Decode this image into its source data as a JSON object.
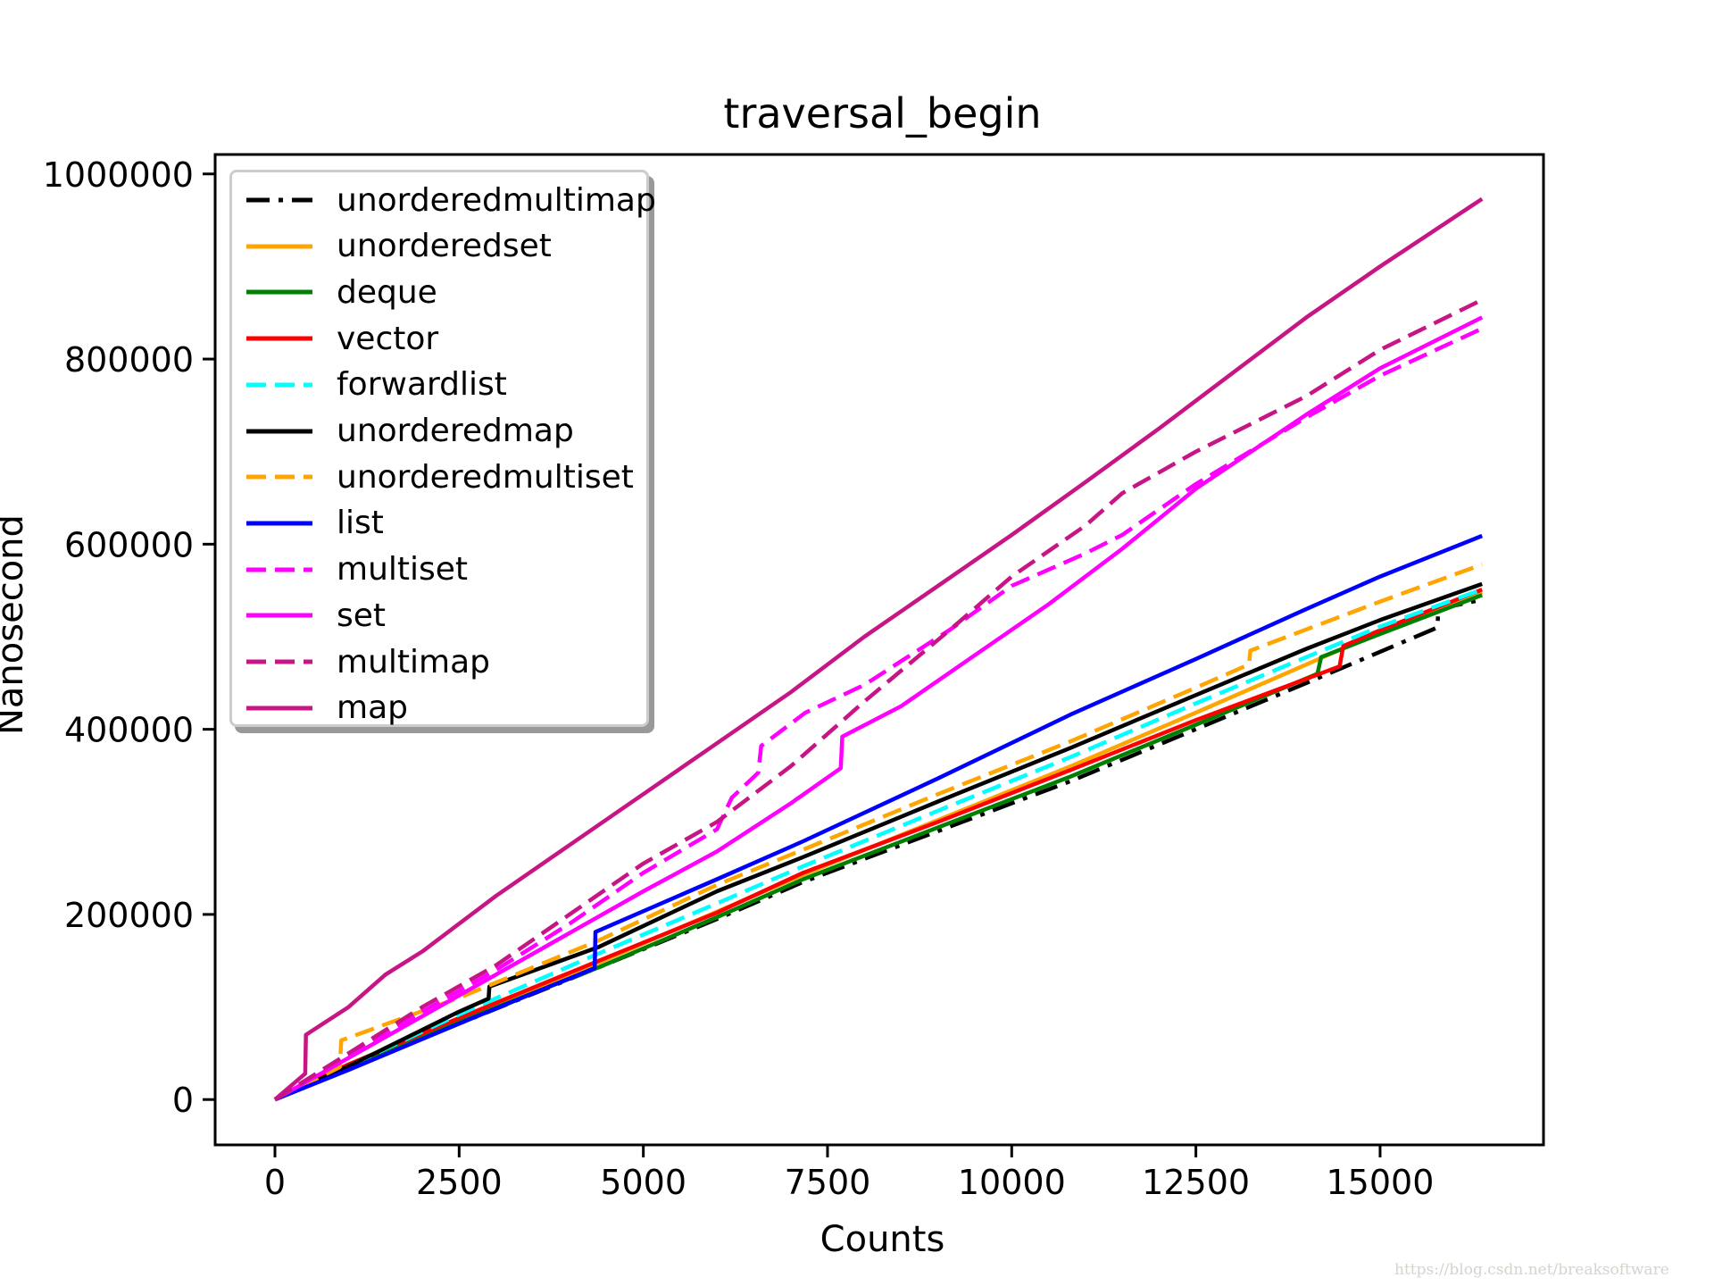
{
  "chart_data": {
    "type": "line",
    "title": "traversal_begin",
    "xlabel": "Counts",
    "ylabel": "Nanosecond",
    "xlim": [
      -812,
      17218
    ],
    "ylim": [
      -49000,
      1021000
    ],
    "xticks": [
      0,
      2500,
      5000,
      7500,
      10000,
      12500,
      15000
    ],
    "xtick_labels": [
      "0",
      "2500",
      "5000",
      "7500",
      "10000",
      "12500",
      "15000"
    ],
    "yticks": [
      0,
      200000,
      400000,
      600000,
      800000,
      1000000
    ],
    "ytick_labels": [
      "0",
      "200000",
      "400000",
      "600000",
      "800000",
      "1000000"
    ],
    "grid": false,
    "legend_position": "upper left",
    "series": [
      {
        "name": "unorderedmultimap",
        "color": "#000000",
        "style": "dashdot",
        "x": [
          0,
          1000,
          2500,
          4400,
          6000,
          7170,
          9000,
          10800,
          12500,
          14000,
          15780,
          15790,
          16384
        ],
        "y": [
          0,
          33000,
          82000,
          143000,
          195000,
          235000,
          290000,
          344000,
          400000,
          450000,
          510000,
          530000,
          540000
        ]
      },
      {
        "name": "unorderedset",
        "color": "#FFA500",
        "style": "solid",
        "x": [
          0,
          1000,
          2500,
          4400,
          6000,
          7170,
          9000,
          10800,
          12500,
          14000,
          15000,
          16384
        ],
        "y": [
          0,
          35000,
          86000,
          148000,
          203000,
          243000,
          302000,
          360000,
          418000,
          470000,
          505000,
          548000
        ]
      },
      {
        "name": "deque",
        "color": "#008000",
        "style": "solid",
        "x": [
          0,
          1000,
          2500,
          4400,
          6000,
          7170,
          9000,
          10800,
          12500,
          14150,
          14200,
          15000,
          16384
        ],
        "y": [
          0,
          34000,
          84000,
          143000,
          197000,
          238000,
          294000,
          349000,
          405000,
          460000,
          478000,
          503000,
          545000
        ]
      },
      {
        "name": "vector",
        "color": "#FF0000",
        "style": "solid",
        "x": [
          0,
          1000,
          2500,
          4400,
          6000,
          7170,
          9000,
          10800,
          12500,
          14450,
          14500,
          15000,
          16384
        ],
        "y": [
          0,
          38000,
          88000,
          150000,
          202000,
          245000,
          300000,
          356000,
          410000,
          468000,
          490000,
          507000,
          551000
        ]
      },
      {
        "name": "forwardlist",
        "color": "#00FFFF",
        "style": "dashed",
        "x": [
          0,
          1000,
          2500,
          4400,
          6000,
          7170,
          9000,
          10800,
          12500,
          14000,
          15000,
          16384
        ],
        "y": [
          0,
          36000,
          92000,
          158000,
          212000,
          252000,
          312000,
          370000,
          428000,
          478000,
          511000,
          551000
        ]
      },
      {
        "name": "unorderedmap",
        "color": "#000000",
        "style": "solid",
        "x": [
          0,
          1000,
          2500,
          2900,
          2910,
          4400,
          6000,
          7170,
          9000,
          10800,
          12500,
          14000,
          15000,
          16384
        ],
        "y": [
          0,
          36000,
          95000,
          109000,
          122000,
          165000,
          225000,
          262000,
          322000,
          380000,
          437000,
          487000,
          518000,
          557000
        ]
      },
      {
        "name": "unorderedmultiset",
        "color": "#FFA500",
        "style": "dashed",
        "x": [
          0,
          880,
          900,
          2500,
          4400,
          6000,
          7170,
          9000,
          10800,
          12500,
          13220,
          13240,
          15000,
          16384
        ],
        "y": [
          0,
          35000,
          64000,
          110000,
          172000,
          232000,
          270000,
          330000,
          387000,
          445000,
          470000,
          485000,
          538000,
          578000
        ]
      },
      {
        "name": "list",
        "color": "#0000FF",
        "style": "solid",
        "x": [
          0,
          1000,
          2500,
          4340,
          4350,
          6000,
          7170,
          9000,
          10800,
          12500,
          14000,
          15000,
          16384
        ],
        "y": [
          0,
          32000,
          82000,
          142000,
          181000,
          238000,
          279000,
          347000,
          416000,
          476000,
          530000,
          565000,
          609000
        ]
      },
      {
        "name": "multiset",
        "color": "#FF00FF",
        "style": "dashed",
        "x": [
          0,
          1000,
          2000,
          3000,
          4000,
          5000,
          6000,
          6200,
          6560,
          6600,
          7200,
          8000,
          9170,
          10000,
          11000,
          11500,
          12500,
          14000,
          15000,
          16384
        ],
        "y": [
          0,
          48000,
          95000,
          140000,
          190000,
          245000,
          292000,
          326000,
          353000,
          382000,
          418000,
          448000,
          508000,
          555000,
          590000,
          610000,
          665000,
          737000,
          782000,
          833000
        ]
      },
      {
        "name": "set",
        "color": "#FF00FF",
        "style": "solid",
        "x": [
          0,
          1000,
          2000,
          3000,
          4000,
          5000,
          6000,
          7000,
          7680,
          7700,
          8500,
          9500,
          10500,
          11500,
          12500,
          14000,
          15000,
          16384
        ],
        "y": [
          0,
          45000,
          90000,
          135000,
          180000,
          225000,
          268000,
          320000,
          358000,
          392000,
          425000,
          480000,
          535000,
          595000,
          660000,
          740000,
          790000,
          845000
        ]
      },
      {
        "name": "multimap",
        "color": "#C71585",
        "style": "dashed",
        "x": [
          0,
          1000,
          2000,
          3000,
          4000,
          5000,
          6000,
          7000,
          8000,
          9170,
          10000,
          11000,
          11500,
          12500,
          14000,
          15000,
          16384
        ],
        "y": [
          0,
          50000,
          100000,
          145000,
          200000,
          255000,
          300000,
          360000,
          430000,
          508000,
          565000,
          620000,
          655000,
          700000,
          760000,
          810000,
          864000
        ]
      },
      {
        "name": "map",
        "color": "#C71585",
        "style": "solid",
        "x": [
          0,
          410,
          420,
          1000,
          1500,
          2000,
          3000,
          4000,
          5000,
          6000,
          7000,
          8000,
          9000,
          10000,
          11000,
          12000,
          13000,
          14000,
          15000,
          16384
        ],
        "y": [
          0,
          28000,
          70000,
          100000,
          135000,
          160000,
          220000,
          275000,
          330000,
          385000,
          440000,
          500000,
          555000,
          610000,
          667000,
          725000,
          785000,
          845000,
          900000,
          973000
        ]
      }
    ]
  },
  "watermark": "https://blog.csdn.net/breaksoftware"
}
